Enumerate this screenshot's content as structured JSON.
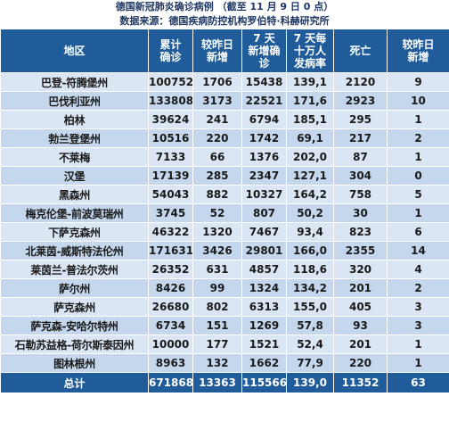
{
  "title": "德国新冠肺炎确诊病例 （截至 11 月 9 日 0 点）",
  "source": "数据来源：德国疾病防控机构罗伯特·科赫研究所",
  "headers": {
    "region": "地区",
    "cumulative": "累计\n确诊",
    "new_cases": "较昨日\n新增",
    "seven_day": "7 天\n新增确\n诊",
    "incidence": "7 天每\n十万人\n发病率",
    "deaths": "死亡",
    "new_deaths": "较昨日\n新增"
  },
  "rows": [
    {
      "region": "巴登-符腾堡州",
      "cumulative": "100752",
      "new_cases": "1706",
      "seven_day": "15438",
      "incidence": "139,1",
      "deaths": "2120",
      "new_deaths": "9"
    },
    {
      "region": "巴伐利亚州",
      "cumulative": "133808",
      "new_cases": "3173",
      "seven_day": "22521",
      "incidence": "171,6",
      "deaths": "2923",
      "new_deaths": "10"
    },
    {
      "region": "柏林",
      "cumulative": "39624",
      "new_cases": "241",
      "seven_day": "6794",
      "incidence": "185,1",
      "deaths": "295",
      "new_deaths": "1"
    },
    {
      "region": "勃兰登堡州",
      "cumulative": "10516",
      "new_cases": "220",
      "seven_day": "1742",
      "incidence": "69,1",
      "deaths": "217",
      "new_deaths": "2"
    },
    {
      "region": "不莱梅",
      "cumulative": "7133",
      "new_cases": "66",
      "seven_day": "1376",
      "incidence": "202,0",
      "deaths": "87",
      "new_deaths": "1"
    },
    {
      "region": "汉堡",
      "cumulative": "17139",
      "new_cases": "285",
      "seven_day": "2347",
      "incidence": "127,1",
      "deaths": "304",
      "new_deaths": "0"
    },
    {
      "region": "黑森州",
      "cumulative": "54043",
      "new_cases": "882",
      "seven_day": "10327",
      "incidence": "164,2",
      "deaths": "758",
      "new_deaths": "5"
    },
    {
      "region": "梅克伦堡-前波莫瑞州",
      "cumulative": "3745",
      "new_cases": "52",
      "seven_day": "807",
      "incidence": "50,2",
      "deaths": "30",
      "new_deaths": "1"
    },
    {
      "region": "下萨克森州",
      "cumulative": "46322",
      "new_cases": "1320",
      "seven_day": "7467",
      "incidence": "93,4",
      "deaths": "823",
      "new_deaths": "6"
    },
    {
      "region": "北莱茵-威斯特法伦州",
      "cumulative": "171631",
      "new_cases": "3426",
      "seven_day": "29801",
      "incidence": "166,0",
      "deaths": "2355",
      "new_deaths": "14"
    },
    {
      "region": "莱茵兰-普法尔茨州",
      "cumulative": "26352",
      "new_cases": "631",
      "seven_day": "4857",
      "incidence": "118,6",
      "deaths": "320",
      "new_deaths": "4"
    },
    {
      "region": "萨尔州",
      "cumulative": "8426",
      "new_cases": "99",
      "seven_day": "1324",
      "incidence": "134,2",
      "deaths": "201",
      "new_deaths": "2"
    },
    {
      "region": "萨克森州",
      "cumulative": "26680",
      "new_cases": "802",
      "seven_day": "6313",
      "incidence": "155,0",
      "deaths": "405",
      "new_deaths": "3"
    },
    {
      "region": "萨克森-安哈尔特州",
      "cumulative": "6734",
      "new_cases": "151",
      "seven_day": "1269",
      "incidence": "57,8",
      "deaths": "93",
      "new_deaths": "3"
    },
    {
      "region": "石勒苏益格-荷尔斯泰因州",
      "cumulative": "10000",
      "new_cases": "177",
      "seven_day": "1521",
      "incidence": "52,4",
      "deaths": "201",
      "new_deaths": "1"
    },
    {
      "region": "图林根州",
      "cumulative": "8963",
      "new_cases": "132",
      "seven_day": "1662",
      "incidence": "77,9",
      "deaths": "220",
      "new_deaths": "1"
    }
  ],
  "total": {
    "region": "总计",
    "cumulative": "671868",
    "new_cases": "13363",
    "seven_day": "115566",
    "incidence": "139,0",
    "deaths": "11352",
    "new_deaths": "63"
  }
}
